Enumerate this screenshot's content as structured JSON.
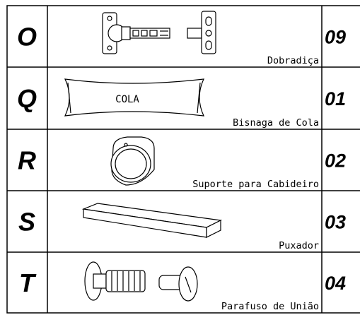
{
  "rows": [
    {
      "letter": "O",
      "name": "Dobradiça",
      "quantity": "09"
    },
    {
      "letter": "Q",
      "name": "Bisnaga de Cola",
      "quantity": "01",
      "image_label": "COLA"
    },
    {
      "letter": "R",
      "name": "Suporte para Cabideiro",
      "quantity": "02"
    },
    {
      "letter": "S",
      "name": "Puxador",
      "quantity": "03"
    },
    {
      "letter": "T",
      "name": "Parafuso de União",
      "quantity": "04"
    }
  ]
}
